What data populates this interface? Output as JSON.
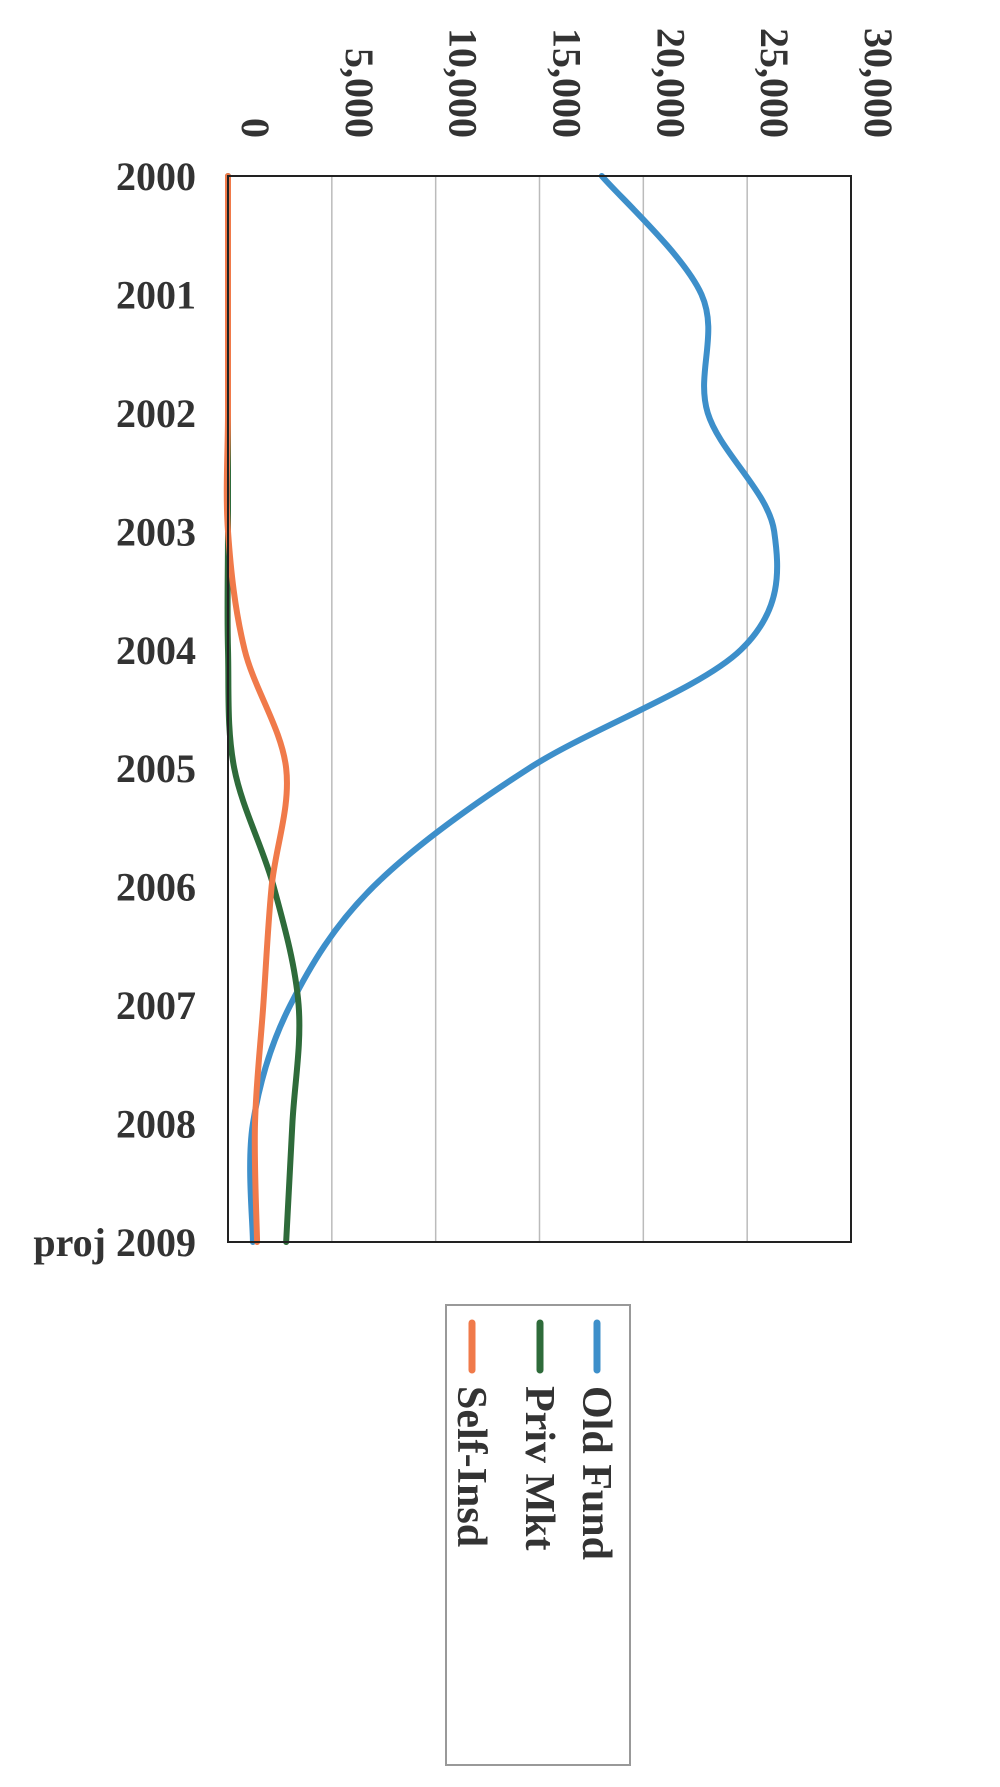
{
  "chart_data": {
    "type": "line",
    "categories": [
      "2000",
      "2001",
      "2002",
      "2003",
      "2004",
      "2005",
      "2006",
      "2007",
      "2008",
      "proj 2009"
    ],
    "value_ticks": [
      "0",
      "5,000",
      "10,000",
      "15,000",
      "20,000",
      "25,000",
      "30,000"
    ],
    "ylim": [
      0,
      30000
    ],
    "grid": true,
    "legend_position": "right",
    "series": [
      {
        "name": "Old Fund",
        "color": "#3d8fca",
        "values": [
          18000,
          22800,
          23100,
          26300,
          24700,
          14500,
          7000,
          3000,
          1200,
          1200
        ]
      },
      {
        "name": "Priv Mkt",
        "color": "#2e6b3a",
        "values": [
          0,
          0,
          0,
          0,
          0,
          300,
          2200,
          3400,
          3100,
          2800
        ]
      },
      {
        "name": "Self-Insd",
        "color": "#f07a4a",
        "values": [
          0,
          0,
          0,
          0,
          800,
          2800,
          2100,
          1700,
          1300,
          1400
        ]
      }
    ]
  }
}
